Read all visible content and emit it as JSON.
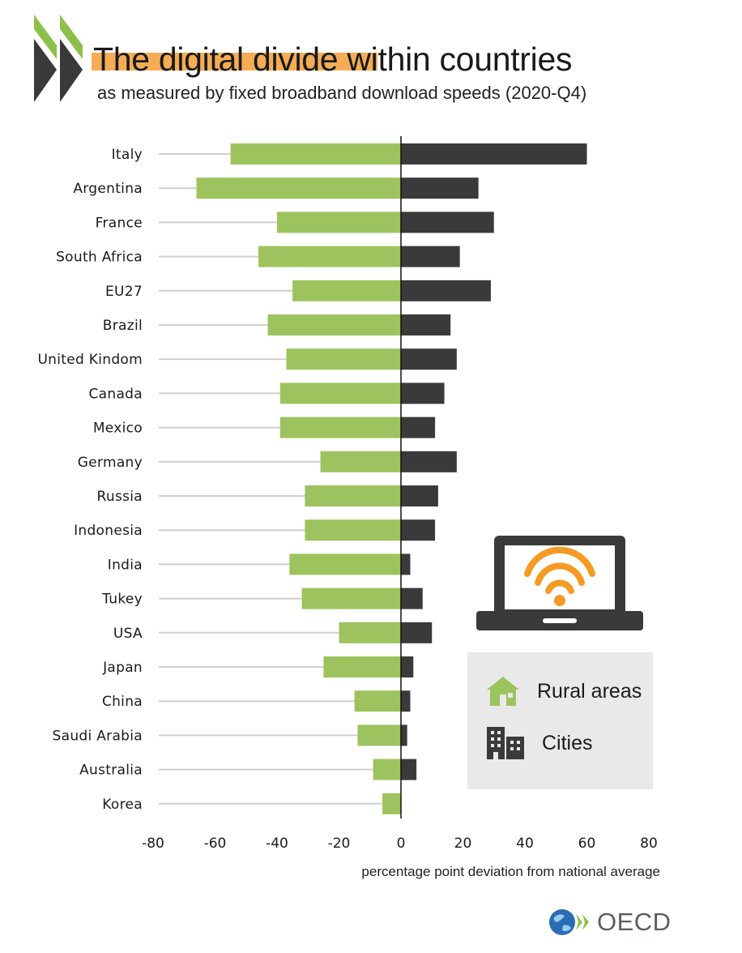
{
  "header": {
    "title_highlighted": "The digital divide",
    "title_rest": " within countries",
    "subtitle": "as measured by fixed broadband download speeds (2020-Q4)"
  },
  "legend": {
    "rural_label": "Rural areas",
    "cities_label": "Cities"
  },
  "footer": {
    "logo_text": "OECD"
  },
  "colors": {
    "rural": "#9dc35e",
    "cities": "#3a3a3a",
    "accent": "#f5ad55",
    "logo_green": "#8cc04b"
  },
  "chart_data": {
    "type": "bar",
    "orientation": "horizontal",
    "categories": [
      "Italy",
      "Argentina",
      "France",
      "South Africa",
      "EU27",
      "Brazil",
      "United Kindom",
      "Canada",
      "Mexico",
      "Germany",
      "Russia",
      "Indonesia",
      "India",
      "Tukey",
      "USA",
      "Japan",
      "China",
      "Saudi Arabia",
      "Australia",
      "Korea"
    ],
    "series": [
      {
        "name": "Rural areas",
        "values": [
          -55,
          -66,
          -40,
          -46,
          -35,
          -43,
          -37,
          -39,
          -39,
          -26,
          -31,
          -31,
          -36,
          -32,
          -20,
          -25,
          -15,
          -14,
          -9,
          -6
        ]
      },
      {
        "name": "Cities",
        "values": [
          60,
          25,
          30,
          19,
          29,
          16,
          18,
          14,
          11,
          18,
          12,
          11,
          3,
          7,
          10,
          4,
          3,
          2,
          5,
          0
        ]
      }
    ],
    "xlabel": "percentage point deviation from national average",
    "xlim": [
      -80,
      80
    ],
    "xticks": [
      -80,
      -60,
      -40,
      -20,
      0,
      20,
      40,
      60,
      80
    ],
    "ylabel": "",
    "legend_position": "bottom-right"
  }
}
